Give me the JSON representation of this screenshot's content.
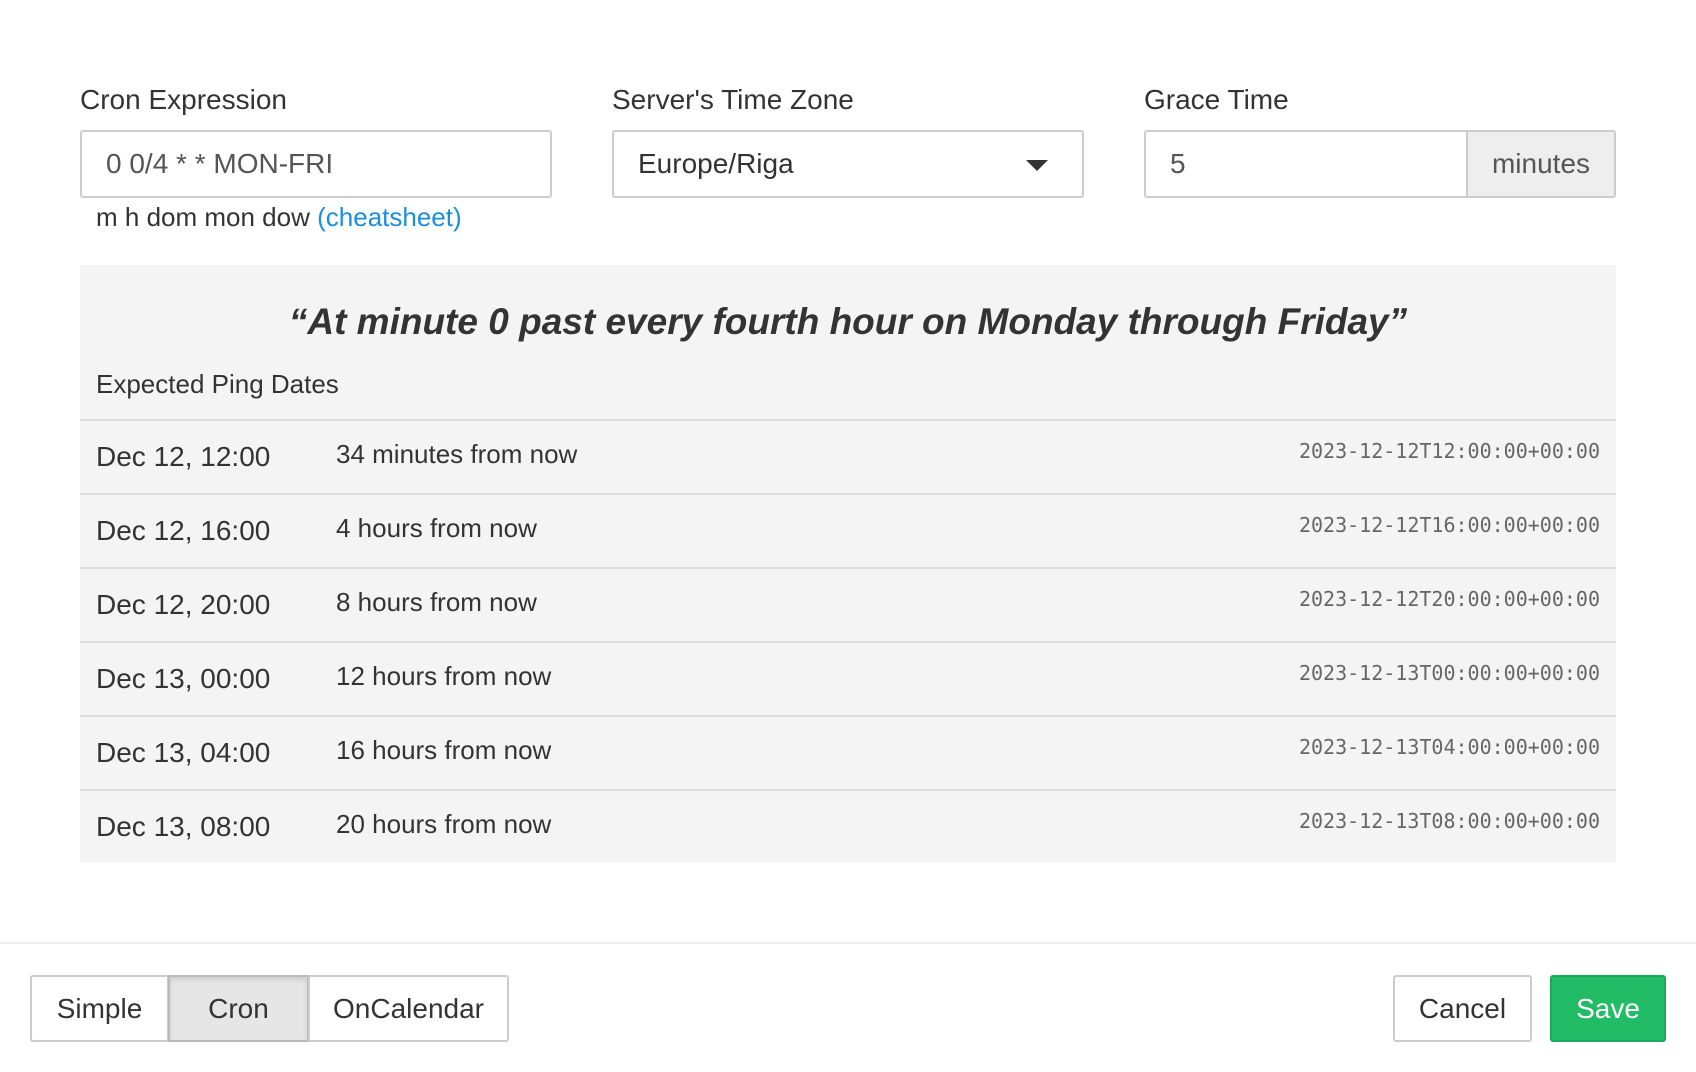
{
  "cron": {
    "label": "Cron Expression",
    "value": "0 0/4 * * MON-FRI",
    "hint": "m h dom mon dow",
    "cheatsheet": "(cheatsheet)"
  },
  "timezone": {
    "label": "Server's Time Zone",
    "value": "Europe/Riga"
  },
  "grace": {
    "label": "Grace Time",
    "value": "5",
    "unit": "minutes"
  },
  "description": "“At minute 0 past every fourth hour on Monday through Friday”",
  "expected_label": "Expected Ping Dates",
  "rows": [
    {
      "date": "Dec 12, 12:00",
      "relative": "34 minutes from now",
      "iso": "2023-12-12T12:00:00+00:00"
    },
    {
      "date": "Dec 12, 16:00",
      "relative": "4 hours from now",
      "iso": "2023-12-12T16:00:00+00:00"
    },
    {
      "date": "Dec 12, 20:00",
      "relative": "8 hours from now",
      "iso": "2023-12-12T20:00:00+00:00"
    },
    {
      "date": "Dec 13, 00:00",
      "relative": "12 hours from now",
      "iso": "2023-12-13T00:00:00+00:00"
    },
    {
      "date": "Dec 13, 04:00",
      "relative": "16 hours from now",
      "iso": "2023-12-13T04:00:00+00:00"
    },
    {
      "date": "Dec 13, 08:00",
      "relative": "20 hours from now",
      "iso": "2023-12-13T08:00:00+00:00"
    }
  ],
  "modes": {
    "simple": "Simple",
    "cron": "Cron",
    "oncalendar": "OnCalendar",
    "active": "Cron"
  },
  "actions": {
    "cancel": "Cancel",
    "save": "Save"
  },
  "colors": {
    "save": "#22bb66",
    "link": "#1a8fe0"
  }
}
